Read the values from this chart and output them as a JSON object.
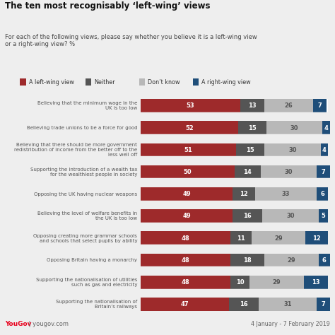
{
  "title": "The ten most recognisably ‘left-wing’ views",
  "subtitle": "For each of the following views, please say whether you believe it is a left-wing view\nor a right-wing view? %",
  "categories": [
    "Believing that the minimum wage in the\nUK is too low",
    "Believing trade unions to be a force for good",
    "Believing that there should be more government\nredistribution of income from the better off to the\nless well off",
    "Supporting the introduction of a wealth tax\nfor the wealthiest people in society",
    "Opposing the UK having nuclear weapons",
    "Believing the level of welfare benefits in\nthe UK is too low",
    "Opposing creating more grammar schools\nand schools that select pupils by ability",
    "Opposing Britain having a monarchy",
    "Supporting the nationalisation of utilities\nsuch as gas and electricity",
    "Supporting the nationalisation of\nBritain’s railways"
  ],
  "left_wing": [
    53,
    52,
    51,
    50,
    49,
    49,
    48,
    48,
    48,
    47
  ],
  "neither": [
    13,
    15,
    15,
    14,
    12,
    16,
    11,
    18,
    10,
    16
  ],
  "dont_know": [
    26,
    30,
    30,
    30,
    33,
    30,
    29,
    29,
    29,
    31
  ],
  "right_wing": [
    7,
    4,
    4,
    7,
    6,
    5,
    12,
    6,
    13,
    7
  ],
  "colors": {
    "left_wing": "#9e2a2b",
    "neither": "#555555",
    "dont_know": "#b8b8b8",
    "right_wing": "#1f4e79"
  },
  "legend_labels": [
    "A left-wing view",
    "Neither",
    "Don’t know",
    "A right-wing view"
  ],
  "bg_color": "#eeeeee",
  "footer_left": "YouGov | yougov.com",
  "footer_right": "4 January - 7 February 2019"
}
